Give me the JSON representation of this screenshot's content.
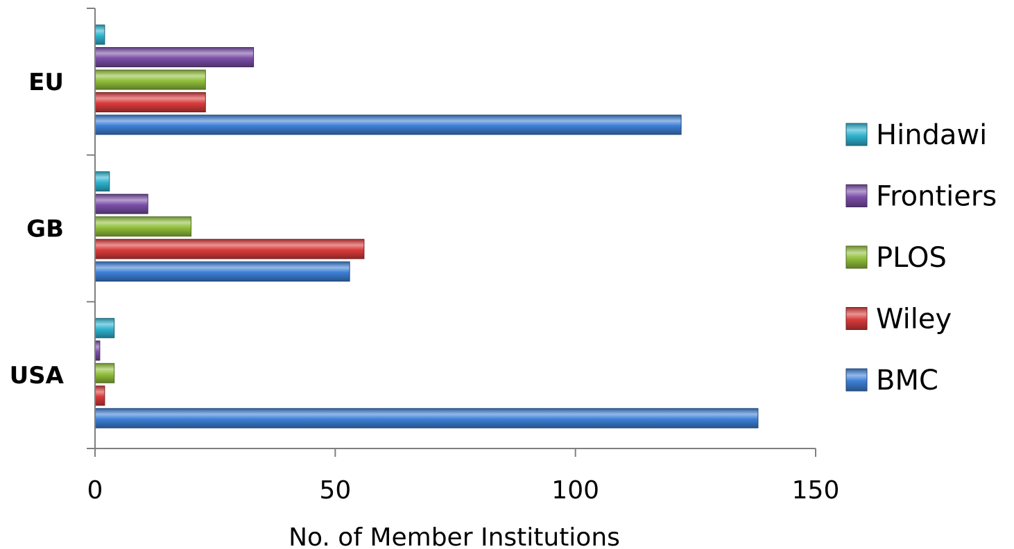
{
  "chart_data": {
    "type": "bar",
    "orientation": "horizontal",
    "categories": [
      "EU",
      "GB",
      "USA"
    ],
    "series": [
      {
        "name": "Hindawi",
        "color": "#2fb3cf",
        "values": [
          2,
          3,
          4
        ]
      },
      {
        "name": "Frontiers",
        "color": "#7b4fa8",
        "values": [
          33,
          11,
          1
        ]
      },
      {
        "name": "PLOS",
        "color": "#92c03c",
        "values": [
          23,
          20,
          4
        ]
      },
      {
        "name": "Wiley",
        "color": "#d93b3b",
        "values": [
          23,
          56,
          2
        ]
      },
      {
        "name": "BMC",
        "color": "#3d7fd6",
        "values": [
          122,
          53,
          138
        ]
      }
    ],
    "xlabel": "No. of Member Institutions",
    "ylabel": "",
    "xlim": [
      0,
      150
    ],
    "xticks": [
      0,
      50,
      100,
      150
    ],
    "grid": false,
    "legend": "right",
    "legend_order": [
      "Hindawi",
      "Frontiers",
      "PLOS",
      "Wiley",
      "BMC"
    ]
  }
}
